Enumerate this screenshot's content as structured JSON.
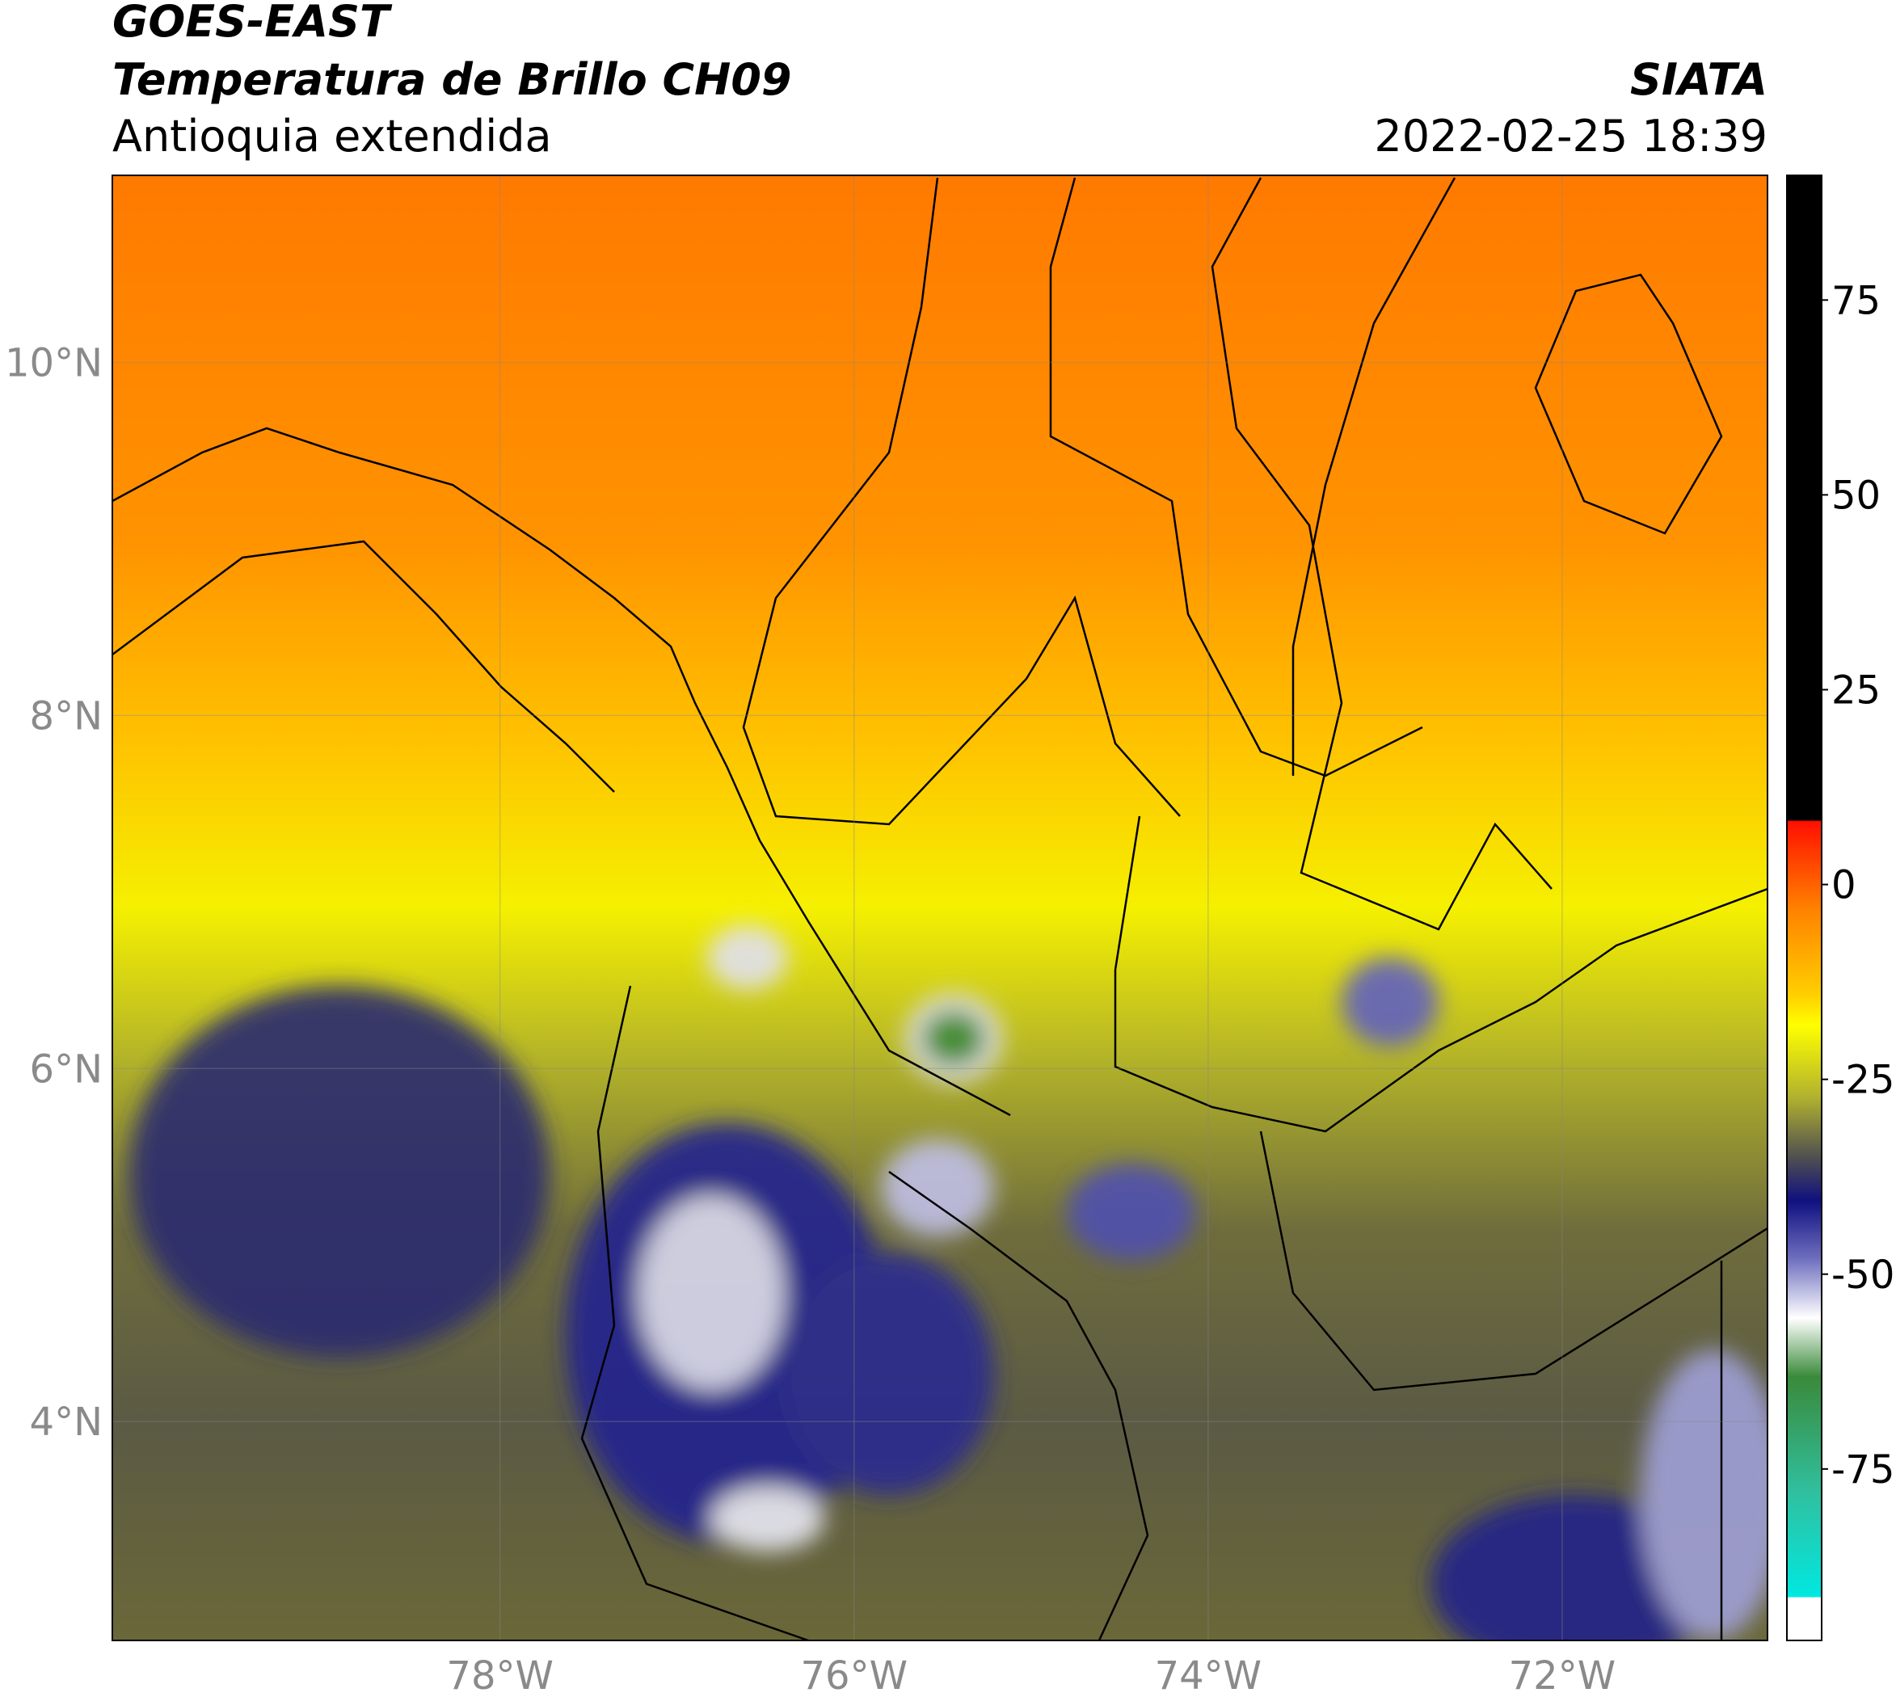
{
  "header": {
    "title": "GOES-EAST",
    "subtitle": "Temperatura de Brillo CH09",
    "region": "Antioquia extendida",
    "source": "SIATA",
    "datetime": "2022-02-25 18:39"
  },
  "map": {
    "latlim": [
      2.76,
      11.06
    ],
    "lonlim": [
      -80.19,
      -70.84
    ],
    "lat_ticks": [
      {
        "value": 4,
        "label": "4°N"
      },
      {
        "value": 6,
        "label": "6°N"
      },
      {
        "value": 8,
        "label": "8°N"
      },
      {
        "value": 10,
        "label": "10°N"
      }
    ],
    "lon_ticks": [
      {
        "value": -78,
        "label": "78°W"
      },
      {
        "value": -76,
        "label": "76°W"
      },
      {
        "value": -74,
        "label": "74°W"
      },
      {
        "value": -72,
        "label": "72°W"
      }
    ],
    "grid": true
  },
  "colorbar": {
    "lim": [
      -97,
      91
    ],
    "ticks": [
      -75,
      -50,
      -25,
      0,
      25,
      50,
      75
    ]
  }
}
